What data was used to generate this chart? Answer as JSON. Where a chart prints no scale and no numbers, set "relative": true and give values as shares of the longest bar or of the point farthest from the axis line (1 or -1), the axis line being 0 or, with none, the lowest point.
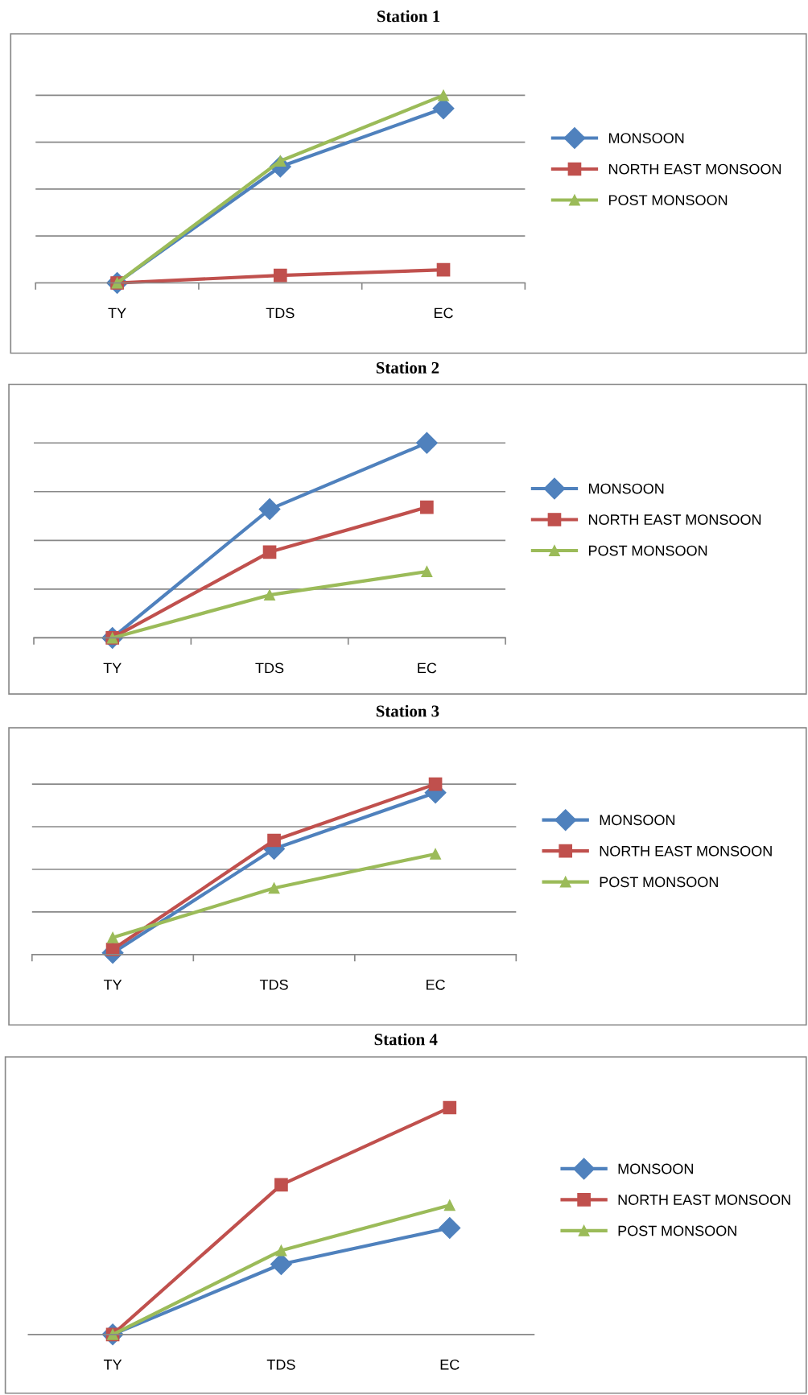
{
  "chart_data": [
    {
      "type": "line",
      "title": "Station 1",
      "categories": [
        "TY",
        "TDS",
        "EC"
      ],
      "relative": true,
      "grid": "y",
      "legend": "right",
      "series": [
        {
          "name": "MONSOON",
          "color": "#4f81bd",
          "marker": "diamond",
          "values": [
            0,
            0.62,
            0.93
          ]
        },
        {
          "name": "NORTH EAST MONSOON",
          "color": "#c0504d",
          "marker": "square",
          "values": [
            0,
            0.04,
            0.07
          ]
        },
        {
          "name": "POST MONSOON",
          "color": "#9bbb59",
          "marker": "triangle",
          "values": [
            0,
            0.65,
            1
          ]
        }
      ]
    },
    {
      "type": "line",
      "title": "Station 2",
      "categories": [
        "TY",
        "TDS",
        "EC"
      ],
      "relative": true,
      "grid": "y",
      "legend": "right",
      "series": [
        {
          "name": "MONSOON",
          "color": "#4f81bd",
          "marker": "diamond",
          "values": [
            0,
            0.66,
            1
          ]
        },
        {
          "name": "NORTH EAST MONSOON",
          "color": "#c0504d",
          "marker": "square",
          "values": [
            0,
            0.44,
            0.67
          ]
        },
        {
          "name": "POST MONSOON",
          "color": "#9bbb59",
          "marker": "triangle",
          "values": [
            0,
            0.22,
            0.34
          ]
        }
      ]
    },
    {
      "type": "line",
      "title": "Station 3",
      "categories": [
        "TY",
        "TDS",
        "EC"
      ],
      "relative": true,
      "grid": "y",
      "legend": "right",
      "series": [
        {
          "name": "MONSOON",
          "color": "#4f81bd",
          "marker": "diamond",
          "values": [
            0.01,
            0.62,
            0.95
          ]
        },
        {
          "name": "NORTH EAST MONSOON",
          "color": "#c0504d",
          "marker": "square",
          "values": [
            0.03,
            0.67,
            1
          ]
        },
        {
          "name": "POST MONSOON",
          "color": "#9bbb59",
          "marker": "triangle",
          "values": [
            0.1,
            0.39,
            0.59
          ]
        }
      ]
    },
    {
      "type": "line",
      "title": "Station 4",
      "categories": [
        "TY",
        "TDS",
        "EC"
      ],
      "relative": true,
      "legend": "right",
      "series": [
        {
          "name": "MONSOON",
          "color": "#4f81bd",
          "marker": "diamond",
          "values": [
            0,
            0.31,
            0.47
          ]
        },
        {
          "name": "NORTH EAST MONSOON",
          "color": "#c0504d",
          "marker": "square",
          "values": [
            0,
            0.66,
            1
          ]
        },
        {
          "name": "POST MONSOON",
          "color": "#9bbb59",
          "marker": "triangle",
          "values": [
            0,
            0.37,
            0.57
          ]
        }
      ]
    }
  ]
}
